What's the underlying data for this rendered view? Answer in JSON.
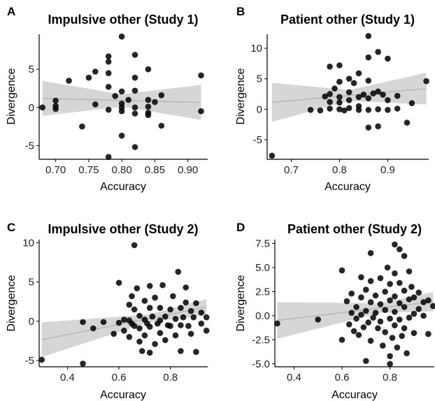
{
  "chart_data": [
    {
      "type": "scatter",
      "panel_label": "A",
      "title": "Impulsive other (Study 1)",
      "xlabel": "Accuracy",
      "ylabel": "Divergence",
      "xlim": [
        0.675,
        0.93
      ],
      "ylim": [
        -6.8,
        9.6
      ],
      "xticks": [
        0.7,
        0.75,
        0.8,
        0.85,
        0.9
      ],
      "xtick_labels": [
        "0.70",
        "0.75",
        "0.80",
        "0.85",
        "0.90"
      ],
      "yticks": [
        -5,
        0,
        5
      ],
      "ytick_labels": [
        "-5",
        "0",
        "5"
      ],
      "grid": false,
      "fit": {
        "intercept": 2.68,
        "slope": -2.2,
        "x_range": [
          0.68,
          0.92
        ]
      },
      "band_halfwidth": [
        {
          "x": 0.68,
          "hw": 2.3
        },
        {
          "x": 0.8,
          "hw": 0.8
        },
        {
          "x": 0.92,
          "hw": 2.3
        }
      ],
      "points": [
        [
          0.68,
          0.0
        ],
        [
          0.7,
          0.9
        ],
        [
          0.7,
          0.2
        ],
        [
          0.7,
          -0.2
        ],
        [
          0.72,
          3.5
        ],
        [
          0.74,
          -2.5
        ],
        [
          0.75,
          3.9
        ],
        [
          0.76,
          4.7
        ],
        [
          0.76,
          0.4
        ],
        [
          0.78,
          6.7
        ],
        [
          0.78,
          6.0
        ],
        [
          0.78,
          4.5
        ],
        [
          0.78,
          2.7
        ],
        [
          0.78,
          -0.3
        ],
        [
          0.78,
          -6.5
        ],
        [
          0.79,
          1.5
        ],
        [
          0.8,
          9.3
        ],
        [
          0.8,
          2.1
        ],
        [
          0.8,
          0.5
        ],
        [
          0.8,
          0.0
        ],
        [
          0.8,
          -0.5
        ],
        [
          0.8,
          -3.7
        ],
        [
          0.81,
          1.0
        ],
        [
          0.82,
          6.9
        ],
        [
          0.82,
          3.9
        ],
        [
          0.82,
          2.2
        ],
        [
          0.82,
          0.0
        ],
        [
          0.82,
          -0.8
        ],
        [
          0.82,
          -5.2
        ],
        [
          0.84,
          5.0
        ],
        [
          0.84,
          1.0
        ],
        [
          0.84,
          0.1
        ],
        [
          0.84,
          -0.7
        ],
        [
          0.84,
          -1.0
        ],
        [
          0.85,
          0.7
        ],
        [
          0.86,
          1.6
        ],
        [
          0.86,
          -2.4
        ],
        [
          0.92,
          4.2
        ],
        [
          0.92,
          -0.5
        ]
      ]
    },
    {
      "type": "scatter",
      "panel_label": "B",
      "title": "Patient other (Study 1)",
      "xlabel": "Accuracy",
      "ylabel": "Divergence",
      "xlim": [
        0.65,
        0.985
      ],
      "ylim": [
        -8.2,
        12.3
      ],
      "xticks": [
        0.7,
        0.8,
        0.9
      ],
      "xtick_labels": [
        "0.7",
        "0.8",
        "0.9"
      ],
      "yticks": [
        -5,
        0,
        5,
        10
      ],
      "ytick_labels": [
        "-5",
        "0",
        "5",
        "10"
      ],
      "grid": false,
      "fit": {
        "intercept": -3.48,
        "slope": 7.0,
        "x_range": [
          0.66,
          0.98
        ]
      },
      "band_halfwidth": [
        {
          "x": 0.66,
          "hw": 3.2
        },
        {
          "x": 0.82,
          "hw": 0.9
        },
        {
          "x": 0.98,
          "hw": 2.6
        }
      ],
      "points": [
        [
          0.66,
          -7.6
        ],
        [
          0.74,
          -0.1
        ],
        [
          0.76,
          -0.2
        ],
        [
          0.77,
          2.1
        ],
        [
          0.78,
          7.0
        ],
        [
          0.78,
          2.5
        ],
        [
          0.78,
          1.2
        ],
        [
          0.78,
          0.1
        ],
        [
          0.79,
          3.4
        ],
        [
          0.8,
          7.2
        ],
        [
          0.8,
          4.5
        ],
        [
          0.8,
          2.0
        ],
        [
          0.8,
          1.1
        ],
        [
          0.8,
          0.0
        ],
        [
          0.81,
          -0.2
        ],
        [
          0.82,
          5.0
        ],
        [
          0.82,
          2.8
        ],
        [
          0.82,
          1.5
        ],
        [
          0.82,
          0.2
        ],
        [
          0.83,
          4.3
        ],
        [
          0.84,
          5.9
        ],
        [
          0.84,
          2.0
        ],
        [
          0.84,
          0.5
        ],
        [
          0.84,
          -0.1
        ],
        [
          0.85,
          2.4
        ],
        [
          0.86,
          12.0
        ],
        [
          0.86,
          8.5
        ],
        [
          0.86,
          4.7
        ],
        [
          0.86,
          1.8
        ],
        [
          0.86,
          -0.1
        ],
        [
          0.86,
          -3.0
        ],
        [
          0.87,
          2.6
        ],
        [
          0.88,
          9.4
        ],
        [
          0.88,
          2.9
        ],
        [
          0.88,
          0.0
        ],
        [
          0.88,
          -2.8
        ],
        [
          0.89,
          2.4
        ],
        [
          0.9,
          8.3
        ],
        [
          0.9,
          1.5
        ],
        [
          0.9,
          -0.1
        ],
        [
          0.92,
          2.2
        ],
        [
          0.92,
          0.1
        ],
        [
          0.94,
          -2.2
        ],
        [
          0.95,
          1.0
        ],
        [
          0.98,
          4.6
        ]
      ]
    },
    {
      "type": "scatter",
      "panel_label": "C",
      "title": "Impulsive other (Study 2)",
      "xlabel": "Accuracy",
      "ylabel": "Divergence",
      "xlim": [
        0.29,
        0.945
      ],
      "ylim": [
        -5.8,
        10.4
      ],
      "xticks": [
        0.4,
        0.6,
        0.8
      ],
      "xtick_labels": [
        "0.4",
        "0.6",
        "0.8"
      ],
      "yticks": [
        -5,
        0,
        5,
        10
      ],
      "ytick_labels": [
        "-5",
        "0",
        "5",
        "10"
      ],
      "grid": false,
      "fit": {
        "intercept": -4.3,
        "slope": 6.5,
        "x_range": [
          0.3,
          0.94
        ]
      },
      "band_halfwidth": [
        {
          "x": 0.3,
          "hw": 2.2
        },
        {
          "x": 0.72,
          "hw": 0.5
        },
        {
          "x": 0.94,
          "hw": 1.0
        }
      ],
      "points": [
        [
          0.3,
          -4.9
        ],
        [
          0.46,
          -0.1
        ],
        [
          0.46,
          -5.4
        ],
        [
          0.5,
          -0.9
        ],
        [
          0.54,
          -0.1
        ],
        [
          0.58,
          -1.6
        ],
        [
          0.6,
          4.9
        ],
        [
          0.6,
          -0.2
        ],
        [
          0.62,
          0.2
        ],
        [
          0.62,
          -1.2
        ],
        [
          0.64,
          2.1
        ],
        [
          0.64,
          0.1
        ],
        [
          0.64,
          -2.0
        ],
        [
          0.65,
          3.2
        ],
        [
          0.65,
          -0.3
        ],
        [
          0.66,
          9.7
        ],
        [
          0.66,
          1.5
        ],
        [
          0.66,
          -0.6
        ],
        [
          0.67,
          4.2
        ],
        [
          0.68,
          0.7
        ],
        [
          0.68,
          -0.9
        ],
        [
          0.68,
          -2.6
        ],
        [
          0.69,
          -3.8
        ],
        [
          0.7,
          2.6
        ],
        [
          0.7,
          0.2
        ],
        [
          0.7,
          -1.8
        ],
        [
          0.71,
          -0.3
        ],
        [
          0.72,
          4.5
        ],
        [
          0.72,
          1.7
        ],
        [
          0.72,
          -0.7
        ],
        [
          0.72,
          -4.0
        ],
        [
          0.73,
          0.6
        ],
        [
          0.74,
          -2.9
        ],
        [
          0.74,
          3.0
        ],
        [
          0.75,
          -0.3
        ],
        [
          0.76,
          1.7
        ],
        [
          0.76,
          0.1
        ],
        [
          0.76,
          -1.5
        ],
        [
          0.77,
          4.6
        ],
        [
          0.78,
          0.6
        ],
        [
          0.78,
          -2.4
        ],
        [
          0.79,
          -0.5
        ],
        [
          0.8,
          1.5
        ],
        [
          0.8,
          -0.6
        ],
        [
          0.81,
          3.2
        ],
        [
          0.82,
          0.3
        ],
        [
          0.82,
          -1.8
        ],
        [
          0.83,
          6.3
        ],
        [
          0.84,
          1.7
        ],
        [
          0.84,
          -0.5
        ],
        [
          0.84,
          -3.8
        ],
        [
          0.85,
          0.5
        ],
        [
          0.86,
          4.3
        ],
        [
          0.86,
          2.4
        ],
        [
          0.87,
          -0.6
        ],
        [
          0.88,
          1.3
        ],
        [
          0.88,
          -1.6
        ],
        [
          0.89,
          0.5
        ],
        [
          0.9,
          2.3
        ],
        [
          0.9,
          -3.9
        ],
        [
          0.92,
          1.1
        ],
        [
          0.92,
          -0.3
        ],
        [
          0.94,
          0.5
        ],
        [
          0.94,
          -1.2
        ]
      ]
    },
    {
      "type": "scatter",
      "panel_label": "D",
      "title": "Patient other (Study 2)",
      "xlabel": "Accuracy",
      "ylabel": "Divergence",
      "xlim": [
        0.32,
        0.985
      ],
      "ylim": [
        -5.3,
        7.9
      ],
      "xticks": [
        0.4,
        0.6,
        0.8
      ],
      "xtick_labels": [
        "0.4",
        "0.6",
        "0.8"
      ],
      "yticks": [
        -5.0,
        -2.5,
        0.0,
        2.5,
        5.0,
        7.5
      ],
      "ytick_labels": [
        "-5.0",
        "-2.5",
        "0.0",
        "2.5",
        "5.0",
        "7.5"
      ],
      "grid": false,
      "fit": {
        "intercept": -1.48,
        "slope": 3.0,
        "x_range": [
          0.33,
          0.98
        ]
      },
      "band_halfwidth": [
        {
          "x": 0.33,
          "hw": 1.9
        },
        {
          "x": 0.76,
          "hw": 0.5
        },
        {
          "x": 0.98,
          "hw": 1.0
        }
      ],
      "points": [
        [
          0.33,
          -0.8
        ],
        [
          0.5,
          -0.4
        ],
        [
          0.6,
          4.7
        ],
        [
          0.6,
          -2.5
        ],
        [
          0.62,
          1.5
        ],
        [
          0.63,
          -0.9
        ],
        [
          0.64,
          2.3
        ],
        [
          0.64,
          0.3
        ],
        [
          0.65,
          -1.6
        ],
        [
          0.66,
          0.9
        ],
        [
          0.66,
          -0.3
        ],
        [
          0.67,
          -2.0
        ],
        [
          0.68,
          4.0
        ],
        [
          0.68,
          1.9
        ],
        [
          0.68,
          0.1
        ],
        [
          0.69,
          -1.2
        ],
        [
          0.7,
          -4.7
        ],
        [
          0.7,
          2.7
        ],
        [
          0.7,
          0.5
        ],
        [
          0.71,
          -0.7
        ],
        [
          0.72,
          6.5
        ],
        [
          0.72,
          3.6
        ],
        [
          0.72,
          1.4
        ],
        [
          0.72,
          -2.6
        ],
        [
          0.73,
          -0.2
        ],
        [
          0.74,
          2.1
        ],
        [
          0.74,
          0.3
        ],
        [
          0.75,
          -1.3
        ],
        [
          0.76,
          3.9
        ],
        [
          0.76,
          1.2
        ],
        [
          0.76,
          -0.6
        ],
        [
          0.77,
          -3.1
        ],
        [
          0.78,
          2.5
        ],
        [
          0.78,
          0.6
        ],
        [
          0.78,
          -1.7
        ],
        [
          0.79,
          5.0
        ],
        [
          0.8,
          3.3
        ],
        [
          0.8,
          1.6
        ],
        [
          0.8,
          -0.3
        ],
        [
          0.8,
          -4.2
        ],
        [
          0.8,
          -5.0
        ],
        [
          0.81,
          -2.3
        ],
        [
          0.82,
          7.4
        ],
        [
          0.82,
          4.4
        ],
        [
          0.82,
          2.0
        ],
        [
          0.82,
          0.4
        ],
        [
          0.82,
          -1.0
        ],
        [
          0.83,
          -3.3
        ],
        [
          0.84,
          6.9
        ],
        [
          0.84,
          3.4
        ],
        [
          0.84,
          1.3
        ],
        [
          0.84,
          -0.4
        ],
        [
          0.85,
          -2.1
        ],
        [
          0.86,
          6.2
        ],
        [
          0.86,
          2.6
        ],
        [
          0.86,
          0.9
        ],
        [
          0.86,
          -1.3
        ],
        [
          0.87,
          -3.9
        ],
        [
          0.88,
          4.6
        ],
        [
          0.88,
          1.7
        ],
        [
          0.88,
          -0.2
        ],
        [
          0.89,
          3.0
        ],
        [
          0.9,
          1.9
        ],
        [
          0.9,
          0.2
        ],
        [
          0.9,
          -1.8
        ],
        [
          0.92,
          2.4
        ],
        [
          0.92,
          0.7
        ],
        [
          0.94,
          1.4
        ],
        [
          0.94,
          0.0
        ],
        [
          0.96,
          1.6
        ],
        [
          0.96,
          -1.9
        ],
        [
          0.98,
          1.0
        ]
      ]
    }
  ]
}
